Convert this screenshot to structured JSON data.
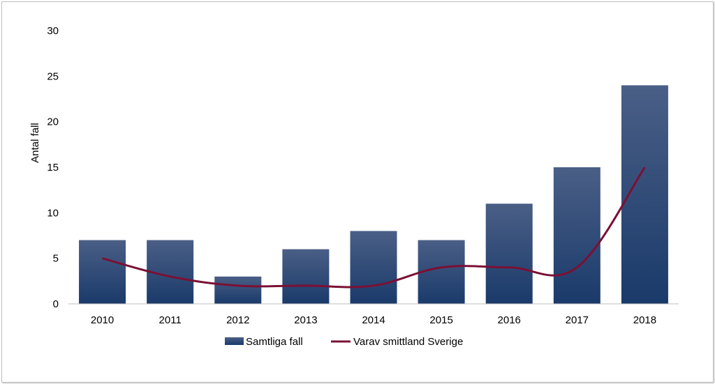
{
  "chart_data": {
    "type": "bar",
    "categories": [
      "2010",
      "2011",
      "2012",
      "2013",
      "2014",
      "2015",
      "2016",
      "2017",
      "2018"
    ],
    "series": [
      {
        "name": "Samtliga fall",
        "type": "bar",
        "values": [
          7,
          7,
          3,
          6,
          8,
          7,
          11,
          15,
          24
        ],
        "color": "#1f3d6b"
      },
      {
        "name": "Varav smittland Sverige",
        "type": "line",
        "values": [
          5,
          3,
          2,
          2,
          2,
          4,
          4,
          4,
          15
        ],
        "color": "#7b1034"
      }
    ],
    "ylabel": "Antal fall",
    "ylim": [
      0,
      30
    ],
    "yticks": [
      "0",
      "5",
      "10",
      "15",
      "20",
      "25",
      "30"
    ],
    "grid": false,
    "legend_position": "bottom"
  }
}
